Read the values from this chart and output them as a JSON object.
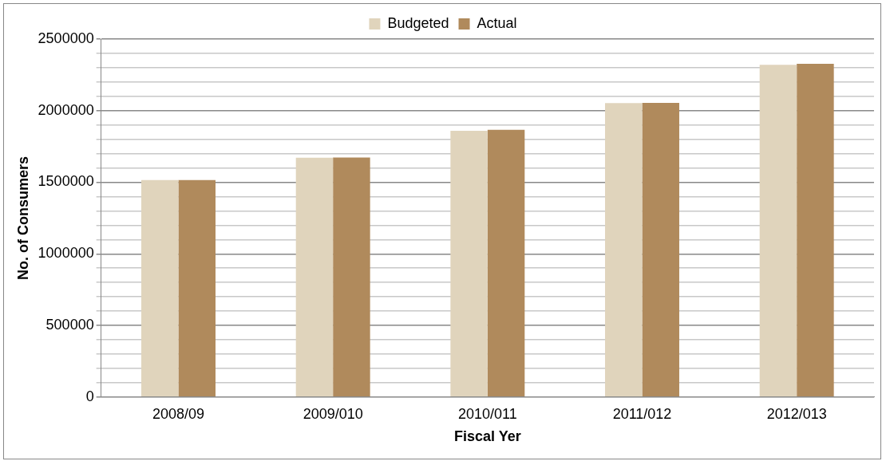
{
  "chart_data": {
    "type": "bar",
    "xlabel": "Fiscal Yer",
    "ylabel": "No. of Consumers",
    "categories": [
      "2008/09",
      "2009/010",
      "2010/011",
      "2011/012",
      "2012/013"
    ],
    "series": [
      {
        "name": "Budgeted",
        "color": "#e0d4bc",
        "values": [
          1515000,
          1671000,
          1859000,
          2053000,
          2321000
        ]
      },
      {
        "name": "Actual",
        "color": "#b08a5c",
        "values": [
          1516000,
          1673000,
          1867000,
          2055000,
          2327000
        ]
      }
    ],
    "ylim": [
      0,
      2500000
    ],
    "yticks": [
      0,
      {
        "value": 100000,
        "label": null
      },
      {
        "value": 200000,
        "label": null
      },
      {
        "value": 300000,
        "label": null
      },
      {
        "value": 400000,
        "label": null
      },
      500000,
      {
        "value": 600000,
        "label": null
      },
      {
        "value": 700000,
        "label": null
      },
      {
        "value": 800000,
        "label": null
      },
      {
        "value": 900000,
        "label": null
      },
      1000000,
      {
        "value": 1100000,
        "label": null
      },
      {
        "value": 1200000,
        "label": null
      },
      {
        "value": 1300000,
        "label": null
      },
      {
        "value": 1400000,
        "label": null
      },
      1500000,
      {
        "value": 1600000,
        "label": null
      },
      {
        "value": 1700000,
        "label": null
      },
      {
        "value": 1800000,
        "label": null
      },
      {
        "value": 1900000,
        "label": null
      },
      2000000,
      {
        "value": 2100000,
        "label": null
      },
      {
        "value": 2200000,
        "label": null
      },
      {
        "value": 2300000,
        "label": null
      },
      {
        "value": 2400000,
        "label": null
      },
      2500000
    ],
    "grid": "y",
    "legend": "top"
  }
}
